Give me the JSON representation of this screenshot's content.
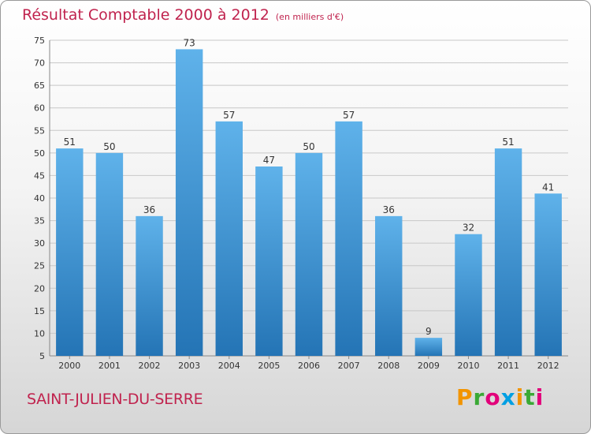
{
  "header": {
    "title": "Résultat Comptable 2000 à 2012",
    "subtitle": "(en milliers d'€)"
  },
  "footer": {
    "commune": "SAINT-JULIEN-DU-SERRE",
    "brand": "Proxiti",
    "brand_colors": [
      "#f29400",
      "#3aa935",
      "#e2007a",
      "#009fe3",
      "#f29400",
      "#3aa935",
      "#e2007a"
    ]
  },
  "colors": {
    "accent": "#c0234e",
    "bar_top": "#5fb2ea",
    "bar_bottom": "#2474b5",
    "grid": "#c8c8c8"
  },
  "chart_data": {
    "type": "bar",
    "title": "Résultat Comptable 2000 à 2012",
    "subtitle": "(en milliers d'€)",
    "xlabel": "",
    "ylabel": "",
    "categories": [
      "2000",
      "2001",
      "2002",
      "2003",
      "2004",
      "2005",
      "2006",
      "2007",
      "2008",
      "2009",
      "2010",
      "2011",
      "2012"
    ],
    "values": [
      51,
      50,
      36,
      73,
      57,
      47,
      50,
      57,
      36,
      9,
      32,
      51,
      41
    ],
    "ylim": [
      5,
      75
    ],
    "yticks": [
      5,
      10,
      15,
      20,
      25,
      30,
      35,
      40,
      45,
      50,
      55,
      60,
      65,
      70,
      75
    ],
    "grid": true,
    "legend": "none"
  }
}
